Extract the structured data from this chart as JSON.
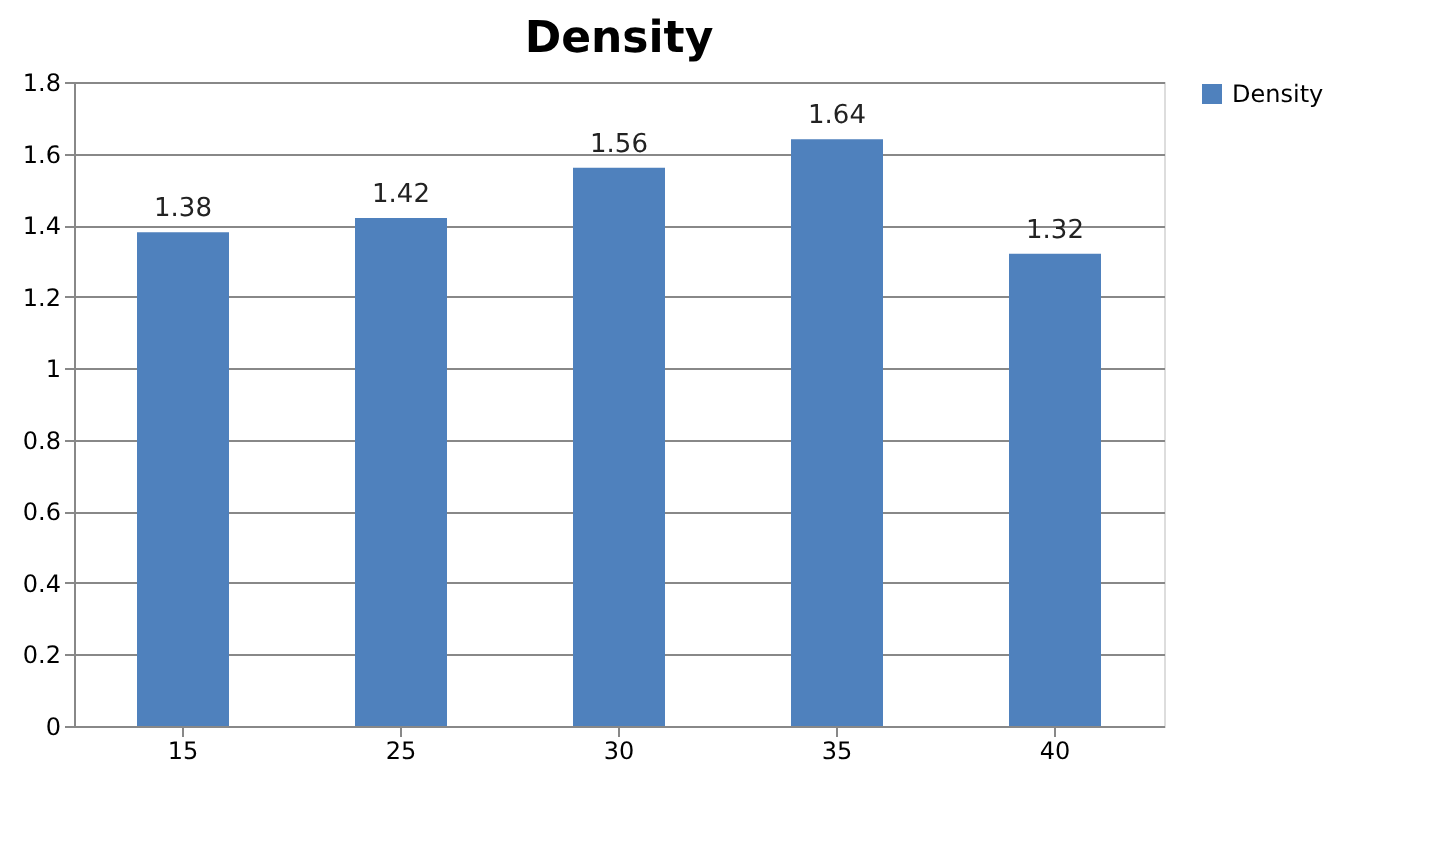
{
  "chart_data": {
    "type": "bar",
    "title": "Density",
    "categories": [
      "15",
      "25",
      "30",
      "35",
      "40"
    ],
    "series": [
      {
        "name": "Density",
        "color": "#4f81bd",
        "values": [
          1.38,
          1.42,
          1.56,
          1.64,
          1.32
        ]
      }
    ],
    "ylim": [
      0,
      1.8
    ],
    "yticks": [
      0,
      0.2,
      0.4,
      0.6,
      0.8,
      1,
      1.2,
      1.4,
      1.6,
      1.8
    ],
    "grid": "y",
    "legend": "right",
    "data_labels": true
  }
}
